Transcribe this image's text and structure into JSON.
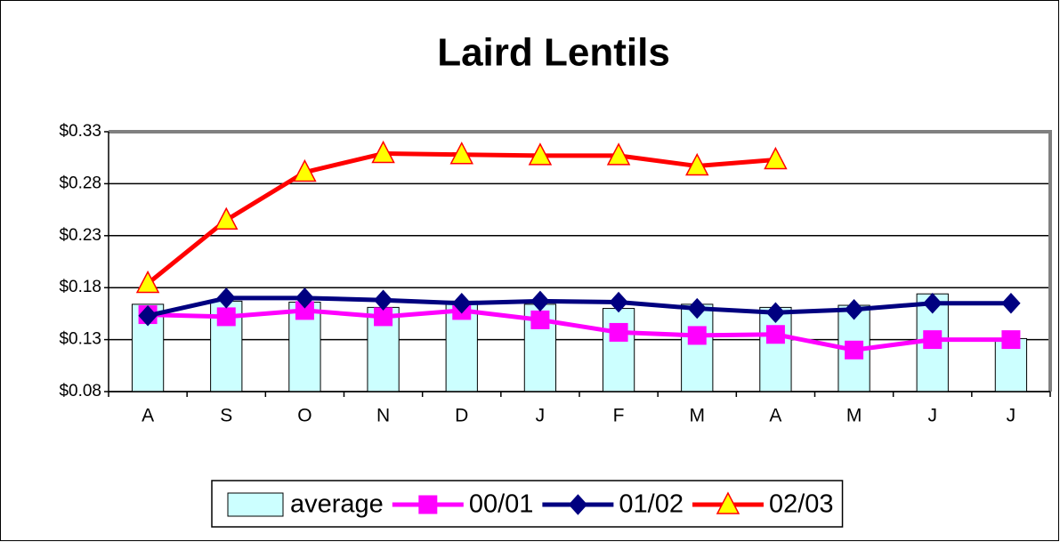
{
  "chart_data": {
    "type": "combo",
    "title": "Laird Lentils",
    "categories": [
      "A",
      "S",
      "O",
      "N",
      "D",
      "J",
      "F",
      "M",
      "A",
      "M",
      "J",
      "J"
    ],
    "series": [
      {
        "name": "average",
        "type": "bar",
        "color": "#ccffff",
        "values": [
          0.164,
          0.167,
          0.166,
          0.161,
          0.167,
          0.164,
          0.16,
          0.164,
          0.161,
          0.163,
          0.174,
          0.131
        ]
      },
      {
        "name": "00/01",
        "type": "line",
        "marker": "square",
        "color": "#ff00ff",
        "values": [
          0.154,
          0.152,
          0.158,
          0.152,
          0.158,
          0.149,
          0.137,
          0.134,
          0.135,
          0.12,
          0.13,
          0.13
        ]
      },
      {
        "name": "01/02",
        "type": "line",
        "marker": "diamond",
        "color": "#000080",
        "values": [
          0.153,
          0.17,
          0.17,
          0.168,
          0.165,
          0.167,
          0.166,
          0.16,
          0.156,
          0.159,
          0.165,
          0.165
        ]
      },
      {
        "name": "02/03",
        "type": "line",
        "marker": "triangle",
        "color": "#ff0000",
        "marker_fill": "#ffff00",
        "values": [
          0.184,
          0.245,
          0.291,
          0.309,
          0.308,
          0.307,
          0.307,
          0.297,
          0.303,
          null,
          null,
          null
        ]
      }
    ],
    "ylim": [
      0.08,
      0.33
    ],
    "yticks": [
      {
        "value": 0.08,
        "label": "$0.08"
      },
      {
        "value": 0.13,
        "label": "$0.13"
      },
      {
        "value": 0.18,
        "label": "$0.18"
      },
      {
        "value": 0.23,
        "label": "$0.23"
      },
      {
        "value": 0.28,
        "label": "$0.28"
      },
      {
        "value": 0.33,
        "label": "$0.33"
      }
    ],
    "grid": true,
    "legend": "bottom"
  }
}
